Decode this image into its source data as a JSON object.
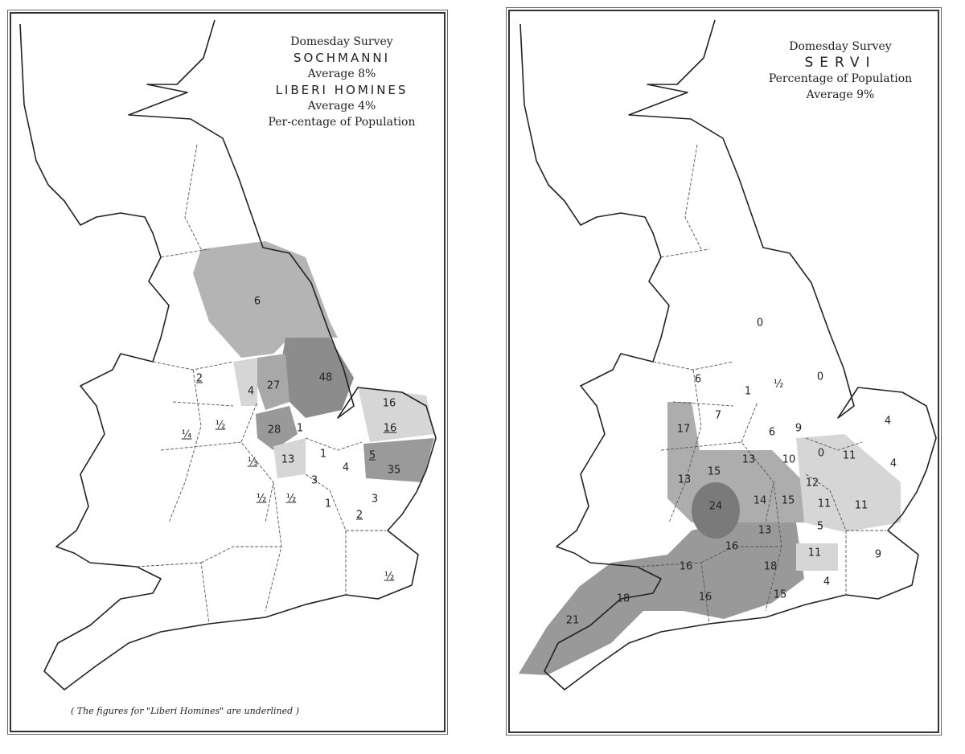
{
  "left_map": {
    "title_lines": [
      "Domesday Survey",
      "SOCHMANNI",
      "Average 8%",
      "LIBERI HOMINES",
      "Average 4%",
      "Per-centage of Population"
    ],
    "note": "( The figures for \"Liberi Homines\" are underlined )",
    "labels": [
      {
        "text": "6",
        "underlined": false
      },
      {
        "text": "2",
        "underlined": true
      },
      {
        "text": "4",
        "underlined": false
      },
      {
        "text": "27",
        "underlined": false
      },
      {
        "text": "48",
        "underlined": false
      },
      {
        "text": "16",
        "underlined": false
      },
      {
        "text": "16",
        "underlined": true
      },
      {
        "text": "28",
        "underlined": false
      },
      {
        "text": "1",
        "underlined": false
      },
      {
        "text": "¼",
        "underlined": true
      },
      {
        "text": "½",
        "underlined": true
      },
      {
        "text": "13",
        "underlined": false
      },
      {
        "text": "1",
        "underlined": false
      },
      {
        "text": "5",
        "underlined": true
      },
      {
        "text": "35",
        "underlined": false
      },
      {
        "text": "4",
        "underlined": false
      },
      {
        "text": "⅓",
        "underlined": true
      },
      {
        "text": "3",
        "underlined": false
      },
      {
        "text": "½",
        "underlined": true
      },
      {
        "text": "½",
        "underlined": true
      },
      {
        "text": "1",
        "underlined": false
      },
      {
        "text": "2",
        "underlined": true
      },
      {
        "text": "3",
        "underlined": false
      },
      {
        "text": "½",
        "underlined": true
      }
    ]
  },
  "right_map": {
    "title_lines": [
      "Domesday Survey",
      "SERVI",
      "Percentage of Population",
      "Average 9%"
    ],
    "labels": [
      "0",
      "0",
      "6",
      "1",
      "½",
      "7",
      "4",
      "6",
      "9",
      "17",
      "0",
      "11",
      "4",
      "13",
      "10",
      "15",
      "13",
      "12",
      "14",
      "15",
      "11",
      "11",
      "24",
      "5",
      "13",
      "16",
      "16",
      "11",
      "9",
      "18",
      "18",
      "16",
      "4",
      "21",
      "15"
    ]
  },
  "colors": {
    "ink": "#222222",
    "shade_light": "#d6d6d6",
    "shade_mid": "#b4b4b4",
    "shade_dark": "#8c8c8c"
  }
}
